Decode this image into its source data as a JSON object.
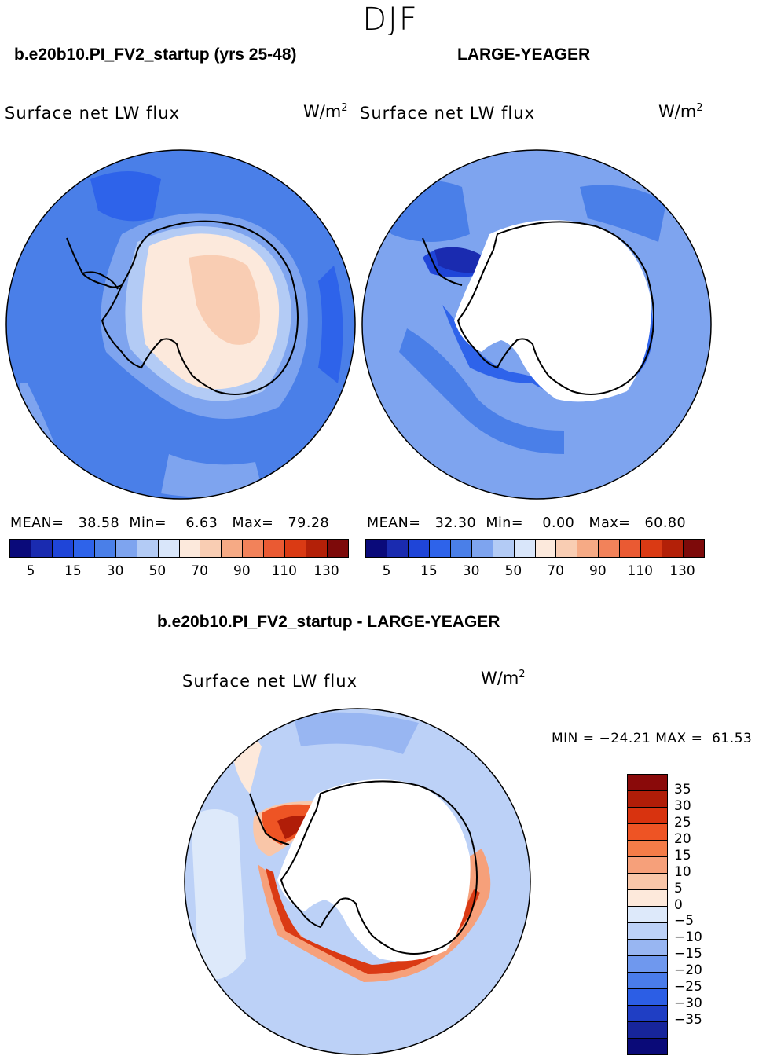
{
  "season": "DJF",
  "panels": [
    {
      "case_title": "b.e20b10.PI_FV2_startup (yrs 25-48)",
      "variable": "Surface net LW flux",
      "units": "W/m",
      "units_exp": "2",
      "stats": {
        "mean_label": "MEAN=",
        "mean": "38.58",
        "min_label": "Min=",
        "min": "6.63",
        "max_label": "Max=",
        "max": "79.28"
      }
    },
    {
      "case_title": "LARGE-YEAGER",
      "variable": "Surface net LW flux",
      "units": "W/m",
      "units_exp": "2",
      "stats": {
        "mean_label": "MEAN=",
        "mean": "32.30",
        "min_label": "Min=",
        "min": "0.00",
        "max_label": "Max=",
        "max": "60.80"
      }
    }
  ],
  "colorbar_top": {
    "colors": [
      "#0a0a7a",
      "#1a2bb0",
      "#1f45d8",
      "#2e63ea",
      "#4a7fe8",
      "#7ea4ef",
      "#b3cbf5",
      "#d9e6fa",
      "#fce9dc",
      "#f9cdb3",
      "#f6aa85",
      "#f2825a",
      "#ea5a33",
      "#da3a14",
      "#b32008",
      "#7d0a0a"
    ],
    "ticks": [
      "5",
      "15",
      "30",
      "50",
      "70",
      "90",
      "110",
      "130"
    ]
  },
  "diff": {
    "title": "b.e20b10.PI_FV2_startup - LARGE-YEAGER",
    "variable": "Surface net LW flux",
    "units": "W/m",
    "units_exp": "2",
    "minmax": "MIN = −24.21 MAX =  61.53",
    "colorbar_colors": [
      "#8a0a0a",
      "#b01d08",
      "#d8330f",
      "#ee5424",
      "#f47c48",
      "#f6a07a",
      "#f9c6a8",
      "#fde9db",
      "#dde9fa",
      "#bcd1f7",
      "#98b6f2",
      "#6f98ee",
      "#4a7cea",
      "#2c5ee5",
      "#1f3ec4",
      "#17259b",
      "#0a0a78"
    ],
    "colorbar_labels": [
      "35",
      "30",
      "25",
      "20",
      "15",
      "10",
      "5",
      "0",
      "−5",
      "−10",
      "−15",
      "−20",
      "−25",
      "−30",
      "−35"
    ]
  },
  "colors": {
    "ocean_top": "#4a7fe8",
    "ocean_diff": "#bcd1f7",
    "land": "#ffffff",
    "coast": "#000000"
  }
}
